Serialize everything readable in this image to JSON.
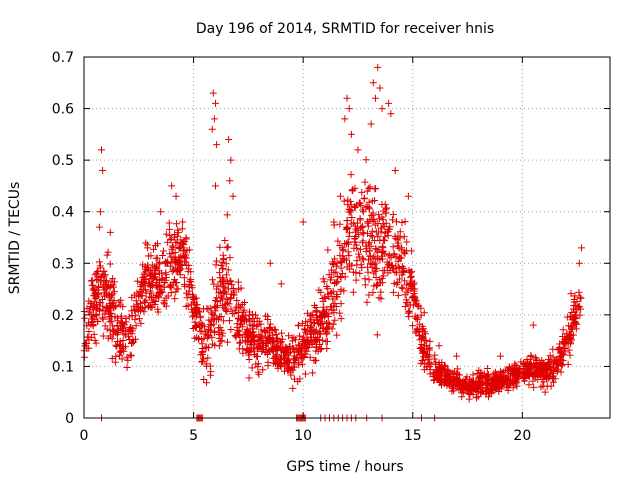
{
  "chart_data": {
    "type": "scatter",
    "title": "Day 196 of 2014, SRMTID for receiver hnis",
    "xlabel": "GPS time / hours",
    "ylabel": "SRMTID / TECUs",
    "xlim": [
      0,
      24
    ],
    "ylim": [
      0,
      0.7
    ],
    "x_ticks": [
      0,
      5,
      10,
      15,
      20
    ],
    "x_tick_labels": [
      "0",
      "5",
      "10",
      "15",
      "20"
    ],
    "y_ticks": [
      0,
      0.1,
      0.2,
      0.3,
      0.4,
      0.5,
      0.6,
      0.7
    ],
    "y_tick_labels": [
      "0",
      "0.1",
      "0.2",
      "0.3",
      "0.4",
      "0.5",
      "0.6",
      "0.7"
    ],
    "grid": true,
    "marker": "+",
    "marker_color": "#e00000",
    "trend_points": [
      [
        0.0,
        0.16
      ],
      [
        0.5,
        0.22
      ],
      [
        1.0,
        0.25
      ],
      [
        1.5,
        0.18
      ],
      [
        2.0,
        0.15
      ],
      [
        2.5,
        0.22
      ],
      [
        3.0,
        0.27
      ],
      [
        3.5,
        0.26
      ],
      [
        4.0,
        0.3
      ],
      [
        4.5,
        0.33
      ],
      [
        5.0,
        0.22
      ],
      [
        5.5,
        0.14
      ],
      [
        6.0,
        0.2
      ],
      [
        6.5,
        0.25
      ],
      [
        7.0,
        0.2
      ],
      [
        7.5,
        0.16
      ],
      [
        8.0,
        0.14
      ],
      [
        8.5,
        0.16
      ],
      [
        9.0,
        0.12
      ],
      [
        9.5,
        0.11
      ],
      [
        10.0,
        0.14
      ],
      [
        10.5,
        0.16
      ],
      [
        11.0,
        0.2
      ],
      [
        11.5,
        0.25
      ],
      [
        12.0,
        0.35
      ],
      [
        12.5,
        0.38
      ],
      [
        13.0,
        0.36
      ],
      [
        13.5,
        0.32
      ],
      [
        14.0,
        0.34
      ],
      [
        14.5,
        0.3
      ],
      [
        15.0,
        0.25
      ],
      [
        15.5,
        0.14
      ],
      [
        16.0,
        0.09
      ],
      [
        16.5,
        0.08
      ],
      [
        17.0,
        0.07
      ],
      [
        17.5,
        0.06
      ],
      [
        18.0,
        0.065
      ],
      [
        18.5,
        0.07
      ],
      [
        19.0,
        0.07
      ],
      [
        19.5,
        0.08
      ],
      [
        20.0,
        0.09
      ],
      [
        20.5,
        0.1
      ],
      [
        21.0,
        0.09
      ],
      [
        21.5,
        0.1
      ],
      [
        22.0,
        0.15
      ],
      [
        22.5,
        0.21
      ],
      [
        22.7,
        0.24
      ]
    ],
    "spread_points": [
      [
        0.0,
        0.07
      ],
      [
        1.0,
        0.12
      ],
      [
        2.0,
        0.08
      ],
      [
        3.0,
        0.09
      ],
      [
        4.0,
        0.1
      ],
      [
        5.0,
        0.08
      ],
      [
        6.0,
        0.14
      ],
      [
        7.0,
        0.1
      ],
      [
        8.0,
        0.07
      ],
      [
        9.0,
        0.05
      ],
      [
        10.0,
        0.08
      ],
      [
        11.0,
        0.1
      ],
      [
        12.0,
        0.14
      ],
      [
        13.0,
        0.16
      ],
      [
        14.0,
        0.14
      ],
      [
        15.0,
        0.1
      ],
      [
        16.0,
        0.04
      ],
      [
        17.0,
        0.03
      ],
      [
        18.0,
        0.03
      ],
      [
        19.0,
        0.03
      ],
      [
        20.0,
        0.035
      ],
      [
        21.0,
        0.04
      ],
      [
        22.0,
        0.06
      ],
      [
        22.7,
        0.07
      ]
    ],
    "peak_points": [
      [
        0.8,
        0.52
      ],
      [
        0.85,
        0.48
      ],
      [
        0.75,
        0.4
      ],
      [
        0.7,
        0.37
      ],
      [
        4.0,
        0.45
      ],
      [
        4.2,
        0.43
      ],
      [
        3.5,
        0.4
      ],
      [
        4.5,
        0.38
      ],
      [
        5.9,
        0.63
      ],
      [
        6.0,
        0.61
      ],
      [
        5.95,
        0.58
      ],
      [
        5.85,
        0.56
      ],
      [
        6.05,
        0.53
      ],
      [
        6.6,
        0.54
      ],
      [
        6.7,
        0.5
      ],
      [
        6.65,
        0.46
      ],
      [
        6.0,
        0.45
      ],
      [
        6.8,
        0.43
      ],
      [
        10.0,
        0.38
      ],
      [
        11.4,
        0.38
      ],
      [
        11.7,
        0.43
      ],
      [
        12.0,
        0.62
      ],
      [
        12.1,
        0.6
      ],
      [
        11.9,
        0.58
      ],
      [
        12.2,
        0.55
      ],
      [
        12.5,
        0.52
      ],
      [
        13.2,
        0.65
      ],
      [
        13.4,
        0.68
      ],
      [
        13.5,
        0.64
      ],
      [
        13.3,
        0.62
      ],
      [
        13.6,
        0.6
      ],
      [
        13.9,
        0.61
      ],
      [
        14.0,
        0.59
      ],
      [
        13.1,
        0.57
      ],
      [
        14.2,
        0.48
      ],
      [
        14.8,
        0.43
      ],
      [
        8.5,
        0.3
      ],
      [
        9.0,
        0.26
      ],
      [
        22.7,
        0.33
      ],
      [
        22.6,
        0.3
      ],
      [
        20.5,
        0.18
      ],
      [
        19.0,
        0.12
      ],
      [
        17.0,
        0.12
      ],
      [
        16.2,
        0.14
      ],
      [
        2.9,
        0.33
      ],
      [
        1.2,
        0.36
      ]
    ],
    "zero_points": [
      0.8,
      5.15,
      5.2,
      5.25,
      5.3,
      5.35,
      5.4,
      9.7,
      9.75,
      9.8,
      9.85,
      9.9,
      9.95,
      10.0,
      10.05,
      10.1,
      10.8,
      11.0,
      11.2,
      11.4,
      11.6,
      11.8,
      12.0,
      12.2,
      12.4,
      12.9,
      13.6,
      15.4,
      16.0
    ],
    "n_random_points": 2300,
    "random_seed": 196
  }
}
